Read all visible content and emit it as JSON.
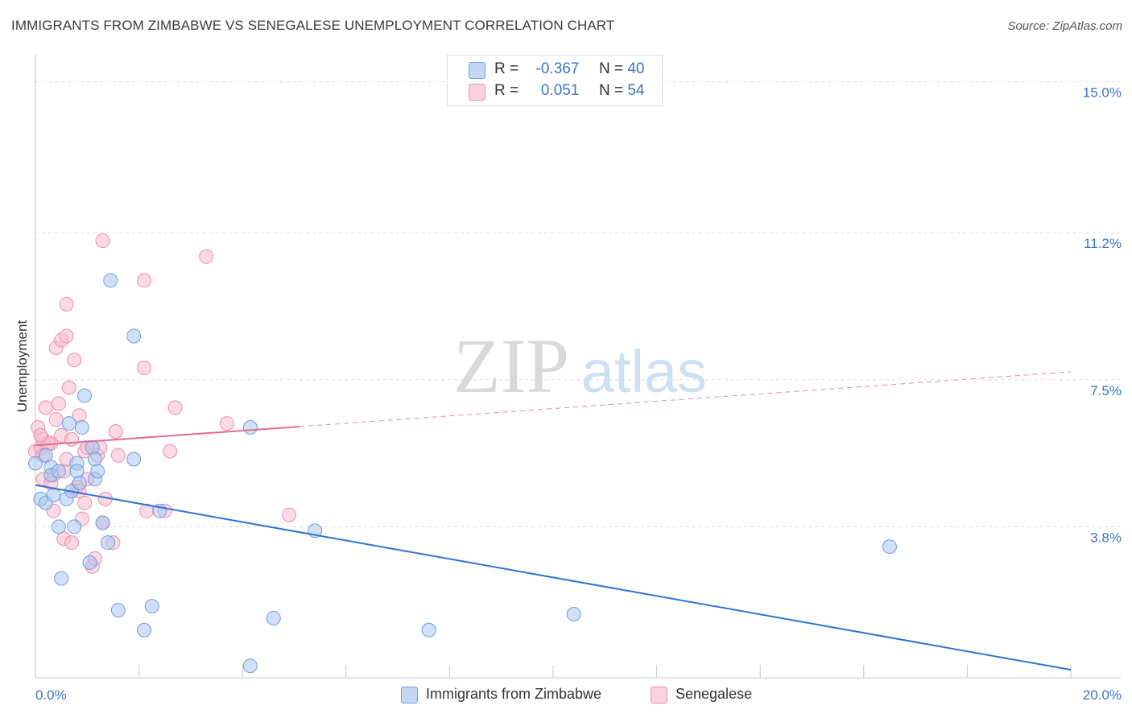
{
  "title": "IMMIGRANTS FROM ZIMBABWE VS SENEGALESE UNEMPLOYMENT CORRELATION CHART",
  "source": "Source: ZipAtlas.com",
  "colors": {
    "blue_fill": "#a9c7ef",
    "blue_stroke": "#6f9fe0",
    "blue_line": "#2f73d4",
    "pink_fill": "#f7bcd0",
    "pink_stroke": "#ec8fae",
    "pink_line": "#e26a93",
    "axis_label": "#3a74c8"
  },
  "legend": {
    "r_label": "R =",
    "n_label": "N =",
    "rows": [
      {
        "series": "blue",
        "r": "-0.367",
        "n": "40"
      },
      {
        "series": "pink",
        "r": "0.051",
        "n": "54"
      }
    ]
  },
  "chart_data": {
    "type": "scatter",
    "xlabel": "",
    "ylabel": "Unemployment",
    "xlim": [
      0,
      20
    ],
    "ylim": [
      0,
      15.6
    ],
    "x_tick_labels": [
      "0.0%",
      "20.0%"
    ],
    "y_ticks": [
      3.8,
      7.5,
      11.2,
      15.0
    ],
    "y_tick_labels": [
      "3.8%",
      "7.5%",
      "11.2%",
      "15.0%"
    ],
    "watermark": {
      "zip": "ZIP",
      "atlas": "atlas"
    },
    "series": [
      {
        "name": "Immigrants from Zimbabwe",
        "color": "blue",
        "trend": {
          "x0": 0,
          "y0": 4.85,
          "x1": 20,
          "y1": 0.2,
          "solid_until": 20
        },
        "points": [
          [
            0.0,
            5.4
          ],
          [
            0.1,
            4.5
          ],
          [
            0.2,
            4.4
          ],
          [
            0.2,
            5.6
          ],
          [
            0.3,
            5.3
          ],
          [
            0.3,
            5.1
          ],
          [
            0.35,
            4.6
          ],
          [
            0.45,
            5.2
          ],
          [
            0.45,
            3.8
          ],
          [
            0.5,
            2.5
          ],
          [
            0.6,
            4.5
          ],
          [
            0.65,
            6.4
          ],
          [
            0.7,
            4.7
          ],
          [
            0.75,
            3.8
          ],
          [
            0.8,
            5.4
          ],
          [
            0.8,
            5.2
          ],
          [
            0.85,
            4.9
          ],
          [
            0.9,
            6.3
          ],
          [
            0.95,
            7.1
          ],
          [
            1.05,
            2.9
          ],
          [
            1.1,
            5.8
          ],
          [
            1.15,
            5.5
          ],
          [
            1.15,
            5.0
          ],
          [
            1.2,
            5.2
          ],
          [
            1.3,
            3.9
          ],
          [
            1.4,
            3.4
          ],
          [
            1.45,
            10.0
          ],
          [
            1.6,
            1.7
          ],
          [
            1.9,
            5.5
          ],
          [
            1.9,
            8.6
          ],
          [
            2.1,
            1.2
          ],
          [
            2.25,
            1.8
          ],
          [
            2.4,
            4.2
          ],
          [
            4.15,
            6.3
          ],
          [
            4.15,
            0.3
          ],
          [
            4.6,
            1.5
          ],
          [
            5.4,
            3.7
          ],
          [
            7.6,
            1.2
          ],
          [
            10.4,
            1.6
          ],
          [
            16.5,
            3.3
          ]
        ]
      },
      {
        "name": "Senegalese",
        "color": "pink",
        "trend": {
          "x0": 0,
          "y0": 5.85,
          "x1": 20,
          "y1": 7.7,
          "solid_until": 5.1
        },
        "points": [
          [
            0.0,
            5.7
          ],
          [
            0.05,
            6.3
          ],
          [
            0.1,
            5.8
          ],
          [
            0.15,
            6.0
          ],
          [
            0.15,
            5.6
          ],
          [
            0.2,
            6.8
          ],
          [
            0.3,
            5.9
          ],
          [
            0.35,
            5.1
          ],
          [
            0.35,
            4.2
          ],
          [
            0.4,
            8.3
          ],
          [
            0.45,
            6.9
          ],
          [
            0.5,
            8.5
          ],
          [
            0.5,
            6.1
          ],
          [
            0.55,
            3.5
          ],
          [
            0.6,
            9.4
          ],
          [
            0.6,
            8.6
          ],
          [
            0.65,
            7.3
          ],
          [
            0.7,
            3.4
          ],
          [
            0.7,
            6.0
          ],
          [
            0.75,
            8.0
          ],
          [
            0.8,
            4.8
          ],
          [
            0.85,
            4.7
          ],
          [
            0.85,
            6.6
          ],
          [
            0.9,
            4.0
          ],
          [
            0.95,
            5.7
          ],
          [
            1.0,
            5.8
          ],
          [
            1.0,
            5.0
          ],
          [
            1.1,
            2.8
          ],
          [
            1.15,
            3.0
          ],
          [
            1.2,
            5.6
          ],
          [
            1.25,
            5.8
          ],
          [
            1.3,
            3.9
          ],
          [
            1.35,
            4.5
          ],
          [
            1.5,
            3.4
          ],
          [
            1.55,
            6.2
          ],
          [
            1.6,
            5.6
          ],
          [
            1.3,
            11.0
          ],
          [
            2.1,
            10.0
          ],
          [
            2.1,
            7.8
          ],
          [
            2.15,
            4.2
          ],
          [
            2.5,
            4.2
          ],
          [
            2.6,
            5.7
          ],
          [
            2.7,
            6.8
          ],
          [
            3.3,
            10.6
          ],
          [
            3.7,
            6.4
          ],
          [
            4.9,
            4.1
          ],
          [
            0.25,
            5.9
          ],
          [
            0.55,
            5.2
          ],
          [
            0.95,
            4.4
          ],
          [
            0.15,
            5.0
          ],
          [
            0.4,
            6.5
          ],
          [
            0.6,
            5.5
          ],
          [
            0.1,
            6.1
          ],
          [
            0.3,
            4.9
          ]
        ]
      }
    ]
  }
}
